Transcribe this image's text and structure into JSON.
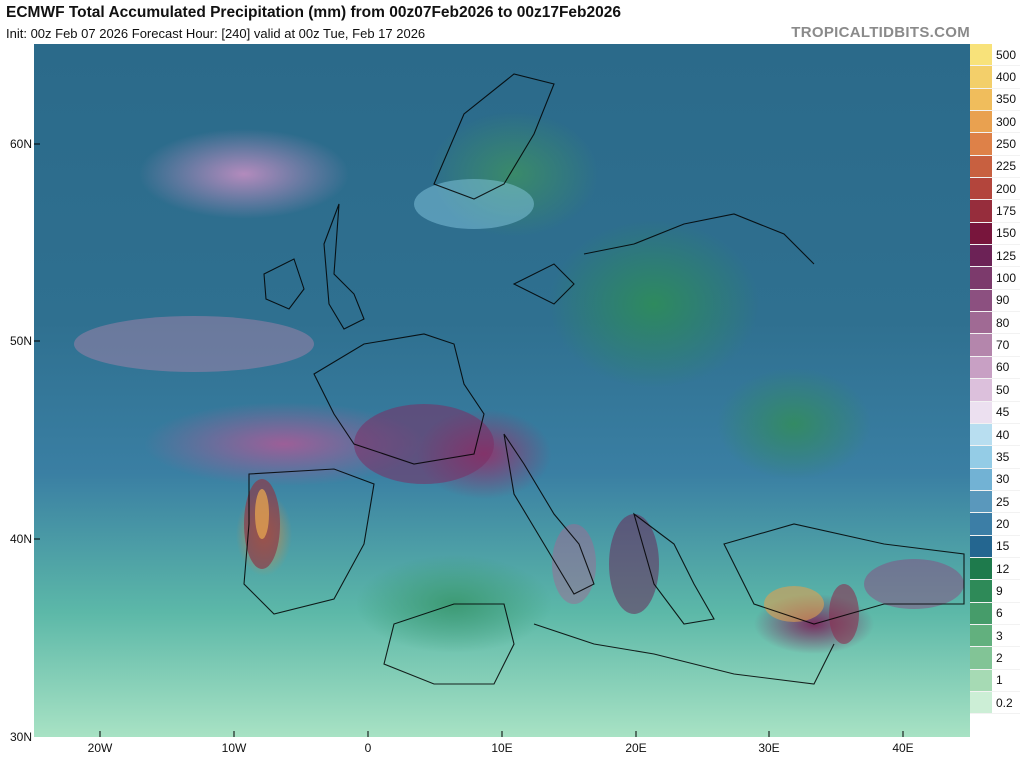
{
  "header": {
    "title": "ECMWF Total Accumulated Precipitation (mm) from 00z07Feb2026 to 00z17Feb2026",
    "subtitle": "Init: 00z Feb 07 2026   Forecast Hour: [240]   valid at 00z Tue, Feb 17 2026",
    "watermark": "TROPICALTIDBITS.COM"
  },
  "map": {
    "lat_labels": [
      "60N",
      "50N",
      "40N",
      "30N"
    ],
    "lon_labels": [
      "20W",
      "10W",
      "0",
      "10E",
      "20E",
      "30E",
      "40E"
    ]
  },
  "colorbar": {
    "levels": [
      {
        "label": "500",
        "color": "#f8e27a"
      },
      {
        "label": "400",
        "color": "#f3cf6a"
      },
      {
        "label": "350",
        "color": "#f0bd5c"
      },
      {
        "label": "300",
        "color": "#e9a150"
      },
      {
        "label": "250",
        "color": "#de8148"
      },
      {
        "label": "225",
        "color": "#c86040"
      },
      {
        "label": "200",
        "color": "#b3453c"
      },
      {
        "label": "175",
        "color": "#962d3c"
      },
      {
        "label": "150",
        "color": "#78153c"
      },
      {
        "label": "125",
        "color": "#6c2256"
      },
      {
        "label": "100",
        "color": "#7c3a6c"
      },
      {
        "label": "90",
        "color": "#8c5080"
      },
      {
        "label": "80",
        "color": "#a06a94"
      },
      {
        "label": "70",
        "color": "#b486ac"
      },
      {
        "label": "60",
        "color": "#c8a0c4"
      },
      {
        "label": "50",
        "color": "#dcc0dc"
      },
      {
        "label": "45",
        "color": "#ece0f0"
      },
      {
        "label": "40",
        "color": "#b8def0"
      },
      {
        "label": "35",
        "color": "#94cce6"
      },
      {
        "label": "30",
        "color": "#72b2d4"
      },
      {
        "label": "25",
        "color": "#5a98bc"
      },
      {
        "label": "20",
        "color": "#3c7ea6"
      },
      {
        "label": "15",
        "color": "#246690"
      },
      {
        "label": "12",
        "color": "#1e7a4c"
      },
      {
        "label": "9",
        "color": "#2e8a58"
      },
      {
        "label": "6",
        "color": "#469c6a"
      },
      {
        "label": "3",
        "color": "#62b07e"
      },
      {
        "label": "2",
        "color": "#82c496"
      },
      {
        "label": "1",
        "color": "#a6dab4"
      },
      {
        "label": "0.2",
        "color": "#cceed6"
      }
    ]
  }
}
